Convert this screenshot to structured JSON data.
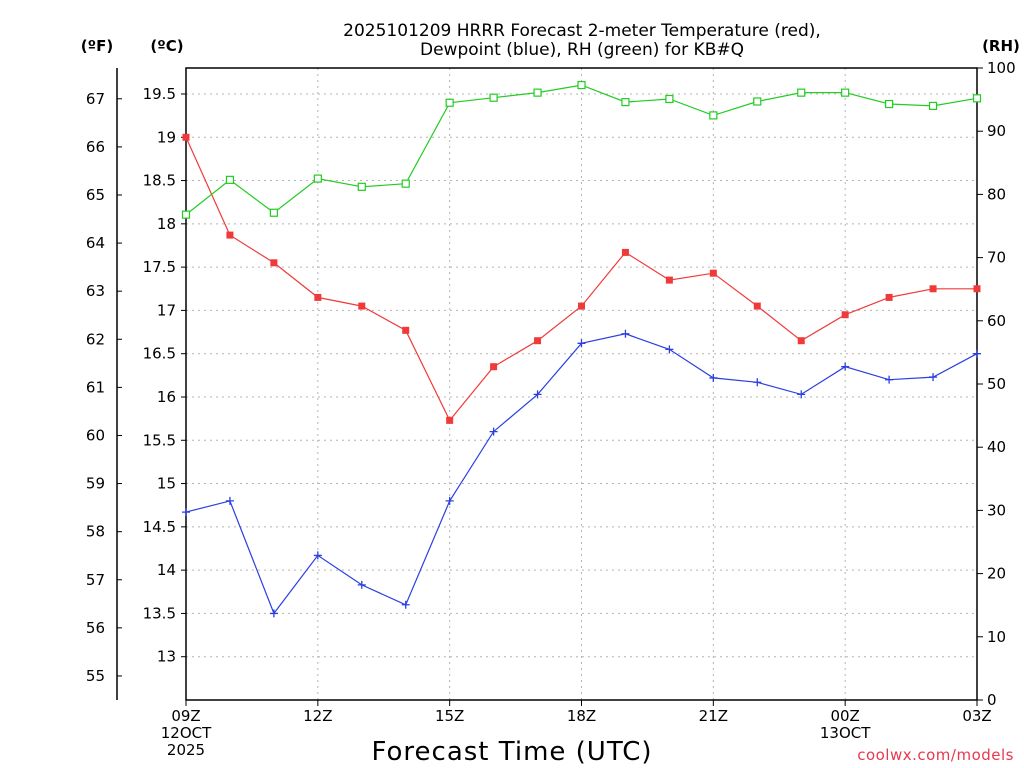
{
  "chart_data": {
    "type": "line",
    "title_line1": "2025101209 HRRR Forecast 2-meter Temperature (red),",
    "title_line2": "Dewpoint (blue), RH (green) for KB#Q",
    "unit_f": "(ºF)",
    "unit_c": "(ºC)",
    "unit_rh": "(RH)",
    "xlabel": "Forecast Time (UTC)",
    "credit": "coolwx.com/models",
    "x_range_hours": [
      0,
      18
    ],
    "x_ticks": [
      {
        "h": 0,
        "l1": "09Z",
        "l2": "12OCT",
        "l3": "2025"
      },
      {
        "h": 3,
        "l1": "12Z",
        "l2": "",
        "l3": ""
      },
      {
        "h": 6,
        "l1": "15Z",
        "l2": "",
        "l3": ""
      },
      {
        "h": 9,
        "l1": "18Z",
        "l2": "",
        "l3": ""
      },
      {
        "h": 12,
        "l1": "21Z",
        "l2": "",
        "l3": ""
      },
      {
        "h": 15,
        "l1": "00Z",
        "l2": "13OCT",
        "l3": ""
      },
      {
        "h": 18,
        "l1": "03Z",
        "l2": "",
        "l3": ""
      }
    ],
    "c_axis": {
      "range": [
        12.5,
        19.8
      ],
      "ticks": [
        "13",
        "13.5",
        "14",
        "14.5",
        "15",
        "15.5",
        "16",
        "16.5",
        "17",
        "17.5",
        "18",
        "18.5",
        "19",
        "19.5"
      ]
    },
    "f_axis": {
      "range": [
        54.5,
        67.64
      ],
      "ticks": [
        "55",
        "56",
        "57",
        "58",
        "59",
        "60",
        "61",
        "62",
        "63",
        "64",
        "65",
        "66",
        "67"
      ]
    },
    "rh_axis": {
      "range": [
        0,
        100
      ],
      "ticks": [
        "0",
        "10",
        "20",
        "30",
        "40",
        "50",
        "60",
        "70",
        "80",
        "90",
        "100"
      ]
    },
    "hours": [
      0,
      1,
      2,
      3,
      4,
      5,
      6,
      7,
      8,
      9,
      10,
      11,
      12,
      13,
      14,
      15,
      16,
      17,
      18
    ],
    "series": [
      {
        "name": "Temperature",
        "unit": "C",
        "color": "#f03a3a",
        "marker": "filled-square",
        "values": [
          19.0,
          17.87,
          17.55,
          17.15,
          17.05,
          16.77,
          15.73,
          16.35,
          16.65,
          17.05,
          17.67,
          17.35,
          17.43,
          17.05,
          16.65,
          16.95,
          17.15,
          17.25,
          17.25
        ]
      },
      {
        "name": "Dewpoint",
        "unit": "C",
        "color": "#2b3fe0",
        "marker": "plus",
        "values": [
          14.67,
          14.8,
          13.5,
          14.17,
          13.83,
          13.6,
          14.8,
          15.6,
          16.03,
          16.62,
          16.73,
          16.55,
          16.22,
          16.17,
          16.03,
          16.35,
          16.2,
          16.23,
          16.5
        ]
      },
      {
        "name": "Relative Humidity",
        "unit": "%",
        "color": "#22cc22",
        "marker": "open-square",
        "values": [
          76.8,
          82.3,
          77.1,
          82.5,
          81.2,
          81.7,
          94.5,
          95.3,
          96.1,
          97.3,
          94.6,
          95.1,
          92.5,
          94.7,
          96.1,
          96.1,
          94.3,
          94.0,
          95.2
        ]
      }
    ],
    "grid": true
  }
}
